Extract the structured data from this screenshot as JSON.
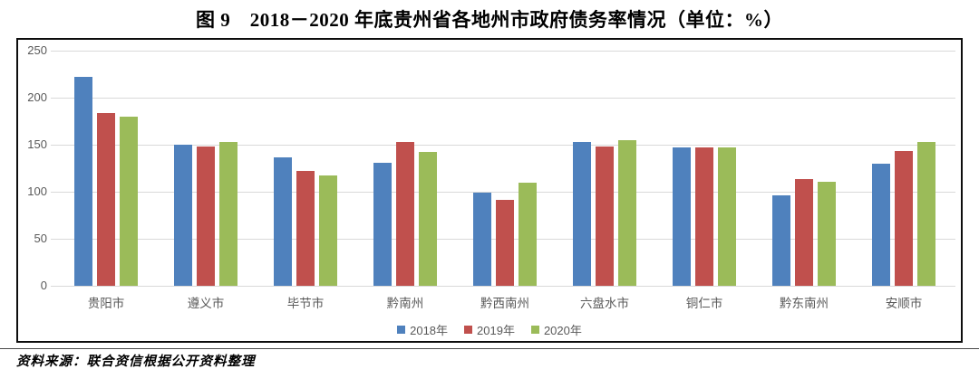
{
  "title": "图 9　2018－2020 年底贵州省各地州市政府债务率情况（单位：%）",
  "source_note": "资料来源：联合资信根据公开资料整理",
  "chart_data": {
    "type": "bar",
    "title": "2018-2020 年底贵州省各地州市政府债务率情况",
    "unit": "%",
    "categories": [
      "贵阳市",
      "遵义市",
      "毕节市",
      "黔南州",
      "黔西南州",
      "六盘水市",
      "铜仁市",
      "黔东南州",
      "安顺市"
    ],
    "series": [
      {
        "name": "2018年",
        "color": "#4F81BD",
        "values": [
          222,
          150,
          137,
          131,
          99,
          153,
          147,
          96,
          130
        ]
      },
      {
        "name": "2019年",
        "color": "#C0504D",
        "values": [
          184,
          148,
          122,
          153,
          91,
          148,
          147,
          113,
          143
        ]
      },
      {
        "name": "2020年",
        "color": "#9BBB59",
        "values": [
          180,
          153,
          117,
          142,
          110,
          155,
          147,
          111,
          153
        ]
      }
    ],
    "ylim": [
      0,
      250
    ],
    "yticks": [
      0,
      50,
      100,
      150,
      200,
      250
    ],
    "grid": true,
    "gridline_color": "#d9d9d9",
    "legend_position": "bottom-center"
  }
}
